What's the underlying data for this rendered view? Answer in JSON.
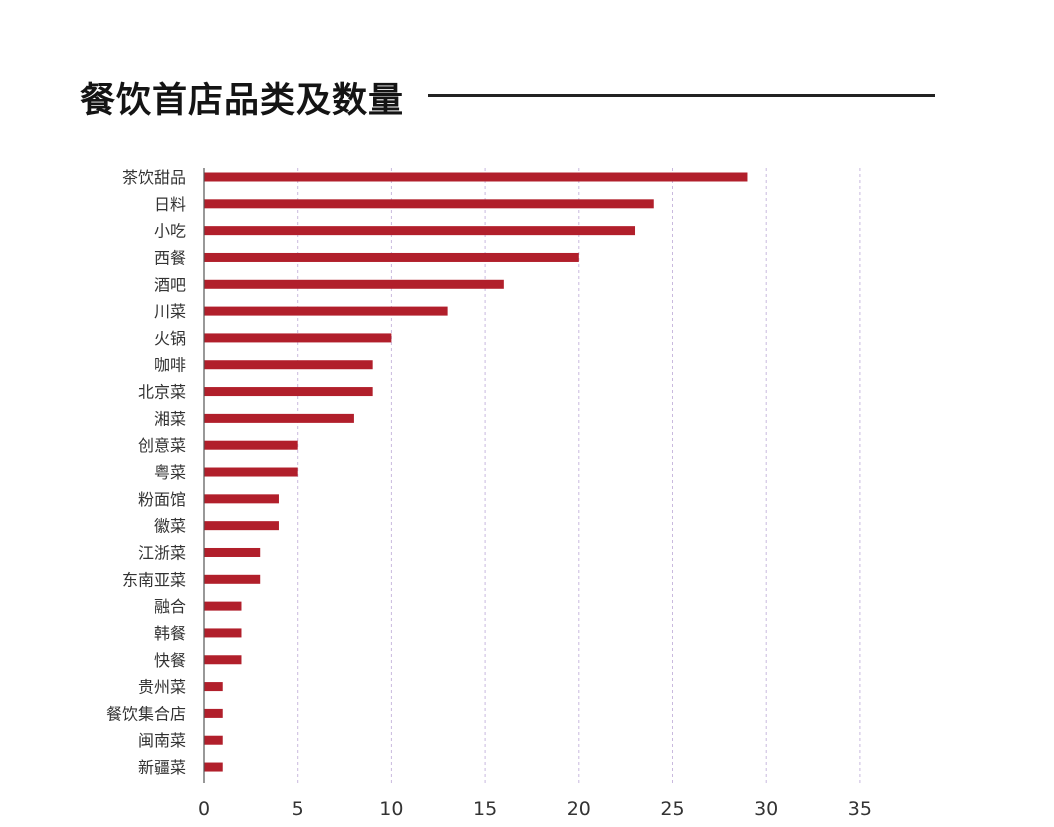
{
  "title": "餐饮首店品类及数量",
  "colors": {
    "bar": "#b11f2b",
    "grid": "#c9b9de",
    "axis": "#555555",
    "rule": "#222222"
  },
  "chart_data": {
    "type": "bar",
    "orientation": "horizontal",
    "title": "餐饮首店品类及数量",
    "xlabel": "",
    "ylabel": "",
    "xlim": [
      0,
      35
    ],
    "xticks": [
      0,
      5,
      10,
      15,
      20,
      25,
      30,
      35
    ],
    "grid": true,
    "categories": [
      "茶饮甜品",
      "日料",
      "小吃",
      "西餐",
      "酒吧",
      "川菜",
      "火锅",
      "咖啡",
      "北京菜",
      "湘菜",
      "创意菜",
      "粤菜",
      "粉面馆",
      "徽菜",
      "江浙菜",
      "东南亚菜",
      "融合",
      "韩餐",
      "快餐",
      "贵州菜",
      "餐饮集合店",
      "闽南菜",
      "新疆菜"
    ],
    "values": [
      29,
      24,
      23,
      20,
      16,
      13,
      10,
      9,
      9,
      8,
      5,
      5,
      4,
      4,
      3,
      3,
      2,
      2,
      2,
      1,
      1,
      1,
      1
    ]
  }
}
